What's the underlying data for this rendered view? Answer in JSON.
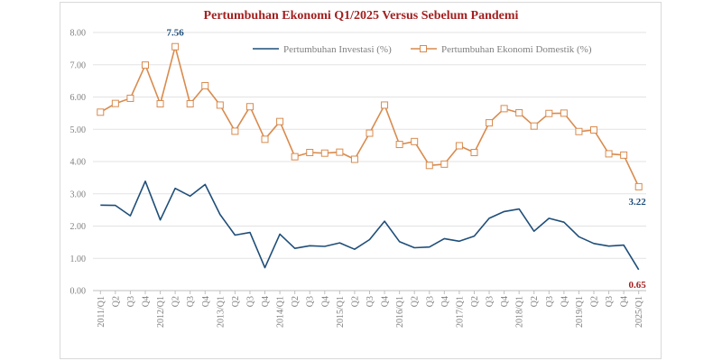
{
  "chart_data": {
    "type": "line",
    "title": "Pertumbuhan Ekonomi Q1/2025 Versus Sebelum Pandemi",
    "xlabel": "",
    "ylabel": "",
    "ylim": [
      0,
      8
    ],
    "yticks": [
      "0.00",
      "1.00",
      "2.00",
      "3.00",
      "4.00",
      "5.00",
      "6.00",
      "7.00",
      "8.00"
    ],
    "grid": "horizontal",
    "legend_position": "top",
    "categories": [
      "2011/Q1",
      "Q2",
      "Q3",
      "Q4",
      "2012/Q1",
      "Q2",
      "Q3",
      "Q4",
      "2013/Q1",
      "Q2",
      "Q3",
      "Q4",
      "2014/Q1",
      "Q2",
      "Q3",
      "Q4",
      "2015/Q1",
      "Q2",
      "Q3",
      "Q4",
      "2016/Q1",
      "Q2",
      "Q3",
      "Q4",
      "2017/Q1",
      "Q2",
      "Q3",
      "Q4",
      "2018/Q1",
      "Q2",
      "Q3",
      "Q4",
      "2019/Q1",
      "Q2",
      "Q3",
      "Q4",
      "2025/Q1"
    ],
    "series": [
      {
        "name": "Pertumbuhan Investasi (%)",
        "color": "#1f4e79",
        "marker": "none",
        "values": [
          2.65,
          2.64,
          2.32,
          3.39,
          2.19,
          3.17,
          2.93,
          3.29,
          2.36,
          1.72,
          1.8,
          0.71,
          1.75,
          1.31,
          1.39,
          1.37,
          1.48,
          1.28,
          1.58,
          2.15,
          1.52,
          1.33,
          1.35,
          1.61,
          1.53,
          1.69,
          2.24,
          2.45,
          2.53,
          1.84,
          2.24,
          2.12,
          1.67,
          1.46,
          1.38,
          1.41,
          0.65
        ]
      },
      {
        "name": "Pertumbuhan Ekonomi Domestik (%)",
        "color": "#d98b4e",
        "marker": "square",
        "values": [
          5.53,
          5.8,
          5.96,
          6.99,
          5.79,
          7.56,
          5.79,
          6.35,
          5.75,
          4.94,
          5.7,
          4.69,
          5.24,
          4.15,
          4.28,
          4.26,
          4.29,
          4.07,
          4.88,
          5.75,
          4.53,
          4.62,
          3.88,
          3.92,
          4.49,
          4.28,
          5.2,
          5.64,
          5.51,
          5.1,
          5.49,
          5.5,
          4.93,
          4.98,
          4.24,
          4.2,
          3.22
        ]
      }
    ],
    "annotations": [
      {
        "text": "7.56",
        "series": 1,
        "index": 5,
        "color": "#1f4e79",
        "placement": "above"
      },
      {
        "text": "3.22",
        "series": 1,
        "index": 36,
        "color": "#1f4e79",
        "placement": "below"
      },
      {
        "text": "0.65",
        "series": 0,
        "index": 36,
        "color": "#a32020",
        "placement": "below"
      }
    ]
  }
}
